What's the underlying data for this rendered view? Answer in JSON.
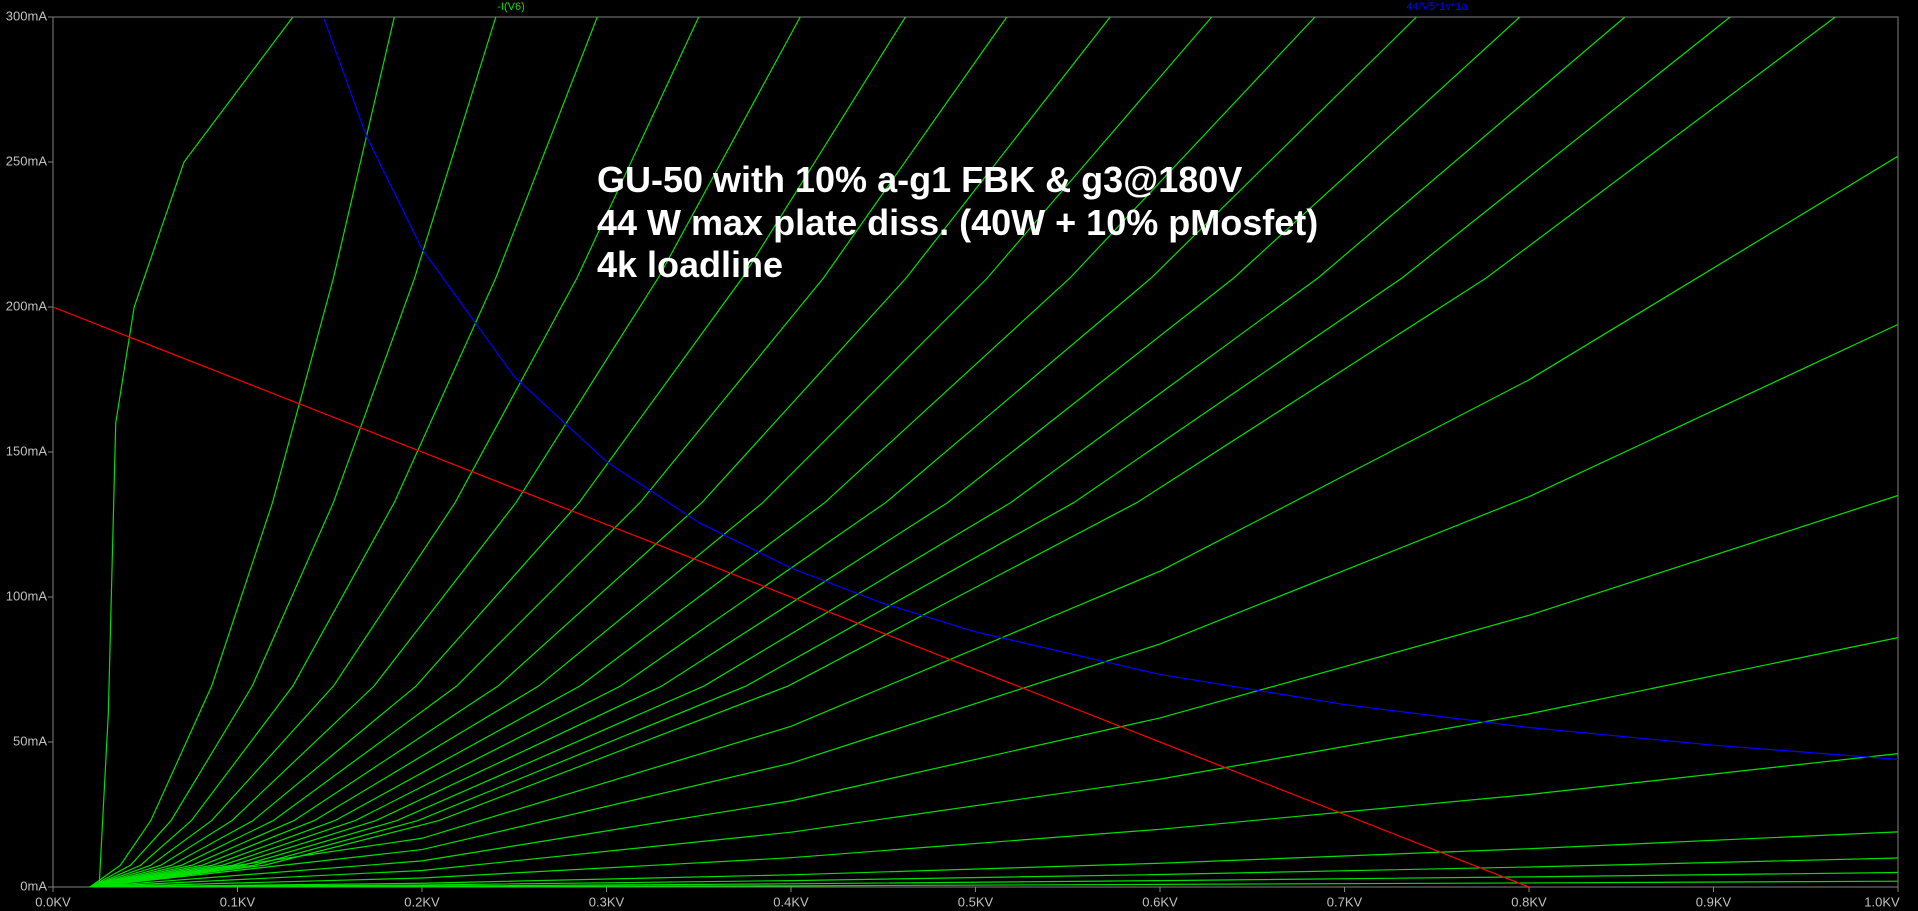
{
  "chart_data": {
    "type": "line",
    "annotations": [
      "GU-50 with 10% a-g1 FBK & g3@180V",
      "44 W max plate diss. (40W + 10% pMosfet)",
      "4k loadline"
    ],
    "xlim": [
      0,
      1
    ],
    "ylim": [
      0,
      300
    ],
    "xticks": [
      {
        "value": 0,
        "label": "0.0KV"
      },
      {
        "value": 0.1,
        "label": "0.1KV"
      },
      {
        "value": 0.2,
        "label": "0.2KV"
      },
      {
        "value": 0.3,
        "label": "0.3KV"
      },
      {
        "value": 0.4,
        "label": "0.4KV"
      },
      {
        "value": 0.5,
        "label": "0.5KV"
      },
      {
        "value": 0.6,
        "label": "0.6KV"
      },
      {
        "value": 0.7,
        "label": "0.7KV"
      },
      {
        "value": 0.8,
        "label": "0.8KV"
      },
      {
        "value": 0.9,
        "label": "0.9KV"
      },
      {
        "value": 1,
        "label": "1.0KV"
      }
    ],
    "yticks": [
      {
        "value": 0,
        "label": "0mA"
      },
      {
        "value": 50,
        "label": "50mA"
      },
      {
        "value": 100,
        "label": "100mA"
      },
      {
        "value": 150,
        "label": "150mA"
      },
      {
        "value": 200,
        "label": "200mA"
      },
      {
        "value": 250,
        "label": "250mA"
      },
      {
        "value": 300,
        "label": "300mA"
      }
    ],
    "grid": false,
    "series": [
      {
        "name": "-I(V6)",
        "color": "#00e000",
        "curves": [
          {
            "x": [
              0.025,
              0.03,
              0.034,
              0.044,
              0.071,
              0.13
            ],
            "values": [
              0,
              60,
              160,
              200,
              250,
              300
            ]
          },
          {
            "x": [
              0.02,
              0.0365,
              0.053,
              0.086,
              0.119,
              0.152,
              0.185
            ],
            "values": [
              0,
              7.5,
              22.9,
              69.3,
              132.6,
              210,
              300
            ]
          },
          {
            "x": [
              0.02,
              0.042,
              0.064,
              0.108,
              0.152,
              0.196,
              0.24
            ],
            "values": [
              0,
              7.5,
              22.9,
              69.3,
              132.6,
              210,
              300
            ]
          },
          {
            "x": [
              0.02,
              0.0475,
              0.075,
              0.13,
              0.185,
              0.24,
              0.295
            ],
            "values": [
              0,
              7.5,
              22.9,
              69.3,
              132.6,
              210,
              300
            ]
          },
          {
            "x": [
              0.02,
              0.053,
              0.086,
              0.152,
              0.218,
              0.284,
              0.35
            ],
            "values": [
              0,
              7.5,
              22.9,
              69.3,
              132.6,
              210,
              300
            ]
          },
          {
            "x": [
              0.02,
              0.0585,
              0.097,
              0.174,
              0.251,
              0.328,
              0.405
            ],
            "values": [
              0,
              7.5,
              22.9,
              69.3,
              132.6,
              210,
              300
            ]
          },
          {
            "x": [
              0.02,
              0.0642,
              0.1084,
              0.1968,
              0.2852,
              0.3736,
              0.462
            ],
            "values": [
              0,
              7.5,
              22.9,
              69.3,
              132.6,
              210,
              300
            ]
          },
          {
            "x": [
              0.02,
              0.0697,
              0.1194,
              0.2188,
              0.3182,
              0.4176,
              0.517
            ],
            "values": [
              0,
              7.5,
              22.9,
              69.3,
              132.6,
              210,
              300
            ]
          },
          {
            "x": [
              0.02,
              0.0753,
              0.1306,
              0.2412,
              0.3518,
              0.4624,
              0.573
            ],
            "values": [
              0,
              7.5,
              22.9,
              69.3,
              132.6,
              210,
              300
            ]
          },
          {
            "x": [
              0.02,
              0.0808,
              0.1416,
              0.2632,
              0.3848,
              0.5064,
              0.628
            ],
            "values": [
              0,
              7.5,
              22.9,
              69.3,
              132.6,
              210,
              300
            ]
          },
          {
            "x": [
              0.02,
              0.0864,
              0.1528,
              0.2856,
              0.4184,
              0.5512,
              0.684
            ],
            "values": [
              0,
              7.5,
              22.9,
              69.3,
              132.6,
              210,
              300
            ]
          },
          {
            "x": [
              0.02,
              0.0919,
              0.1638,
              0.3076,
              0.4514,
              0.5952,
              0.739
            ],
            "values": [
              0,
              7.5,
              22.9,
              69.3,
              132.6,
              210,
              300
            ]
          },
          {
            "x": [
              0.02,
              0.0975,
              0.175,
              0.33,
              0.485,
              0.64,
              0.795
            ],
            "values": [
              0,
              7.5,
              22.9,
              69.3,
              132.6,
              210,
              300
            ]
          },
          {
            "x": [
              0.02,
              0.1032,
              0.1864,
              0.3528,
              0.5192,
              0.6856,
              0.852
            ],
            "values": [
              0,
              7.5,
              22.9,
              69.3,
              132.6,
              210,
              300
            ]
          },
          {
            "x": [
              0.02,
              0.1089,
              0.1978,
              0.3756,
              0.5534,
              0.7312,
              0.909
            ],
            "values": [
              0,
              7.5,
              22.9,
              69.3,
              132.6,
              210,
              300
            ]
          },
          {
            "x": [
              0.02,
              0.1146,
              0.2092,
              0.3984,
              0.5876,
              0.7768,
              0.966
            ],
            "values": [
              0,
              7.5,
              22.9,
              69.3,
              132.6,
              210,
              300
            ]
          },
          {
            "x": [
              0.02,
              0.2,
              0.4,
              0.6,
              0.8,
              1
            ],
            "values": [
              0,
              16.8,
              55.4,
              108.9,
              174.9,
              252
            ]
          },
          {
            "x": [
              0.02,
              0.2,
              0.4,
              0.6,
              0.8,
              1
            ],
            "values": [
              0,
              12.9,
              42.7,
              83.8,
              134.6,
              194
            ]
          },
          {
            "x": [
              0.02,
              0.2,
              0.4,
              0.6,
              0.8,
              1
            ],
            "values": [
              0,
              9,
              29.7,
              58.3,
              93.7,
              135
            ]
          },
          {
            "x": [
              0.02,
              0.2,
              0.4,
              0.6,
              0.8,
              1
            ],
            "values": [
              0,
              5.7,
              18.9,
              37.2,
              59.7,
              86
            ]
          },
          {
            "x": [
              0.02,
              0.2,
              0.4,
              0.6,
              0.8,
              1
            ],
            "values": [
              0,
              3.1,
              10.1,
              19.9,
              31.9,
              46
            ]
          },
          {
            "x": [
              0.02,
              0.2,
              0.4,
              0.6,
              0.8,
              1
            ],
            "values": [
              0,
              1.3,
              4.2,
              8.2,
              13.2,
              19
            ]
          },
          {
            "x": [
              0.02,
              0.2,
              0.4,
              0.6,
              0.8,
              1
            ],
            "values": [
              0,
              0.7,
              2.2,
              4.3,
              6.9,
              10
            ]
          },
          {
            "x": [
              0.02,
              0.2,
              0.4,
              0.6,
              0.8,
              1
            ],
            "values": [
              0,
              0.3,
              1.1,
              2.2,
              3.5,
              5
            ]
          },
          {
            "x": [
              0.02,
              0.2,
              0.4,
              0.6,
              0.8,
              1
            ],
            "values": [
              0,
              0.1,
              0.4,
              0.9,
              1.4,
              2
            ]
          }
        ]
      },
      {
        "name": "44/V5*1v*1a",
        "color": "#0000ff",
        "x": [
          0.147,
          0.17,
          0.2,
          0.25,
          0.3,
          0.35,
          0.4,
          0.45,
          0.5,
          0.6,
          0.7,
          0.8,
          0.9,
          1
        ],
        "values": [
          299.3,
          258.8,
          220,
          176,
          146.7,
          125.7,
          110,
          97.8,
          88,
          73.3,
          62.9,
          55,
          48.9,
          44
        ]
      },
      {
        "color": "#ff0000",
        "x": [
          0,
          0.8
        ],
        "values": [
          200,
          0
        ]
      }
    ]
  }
}
